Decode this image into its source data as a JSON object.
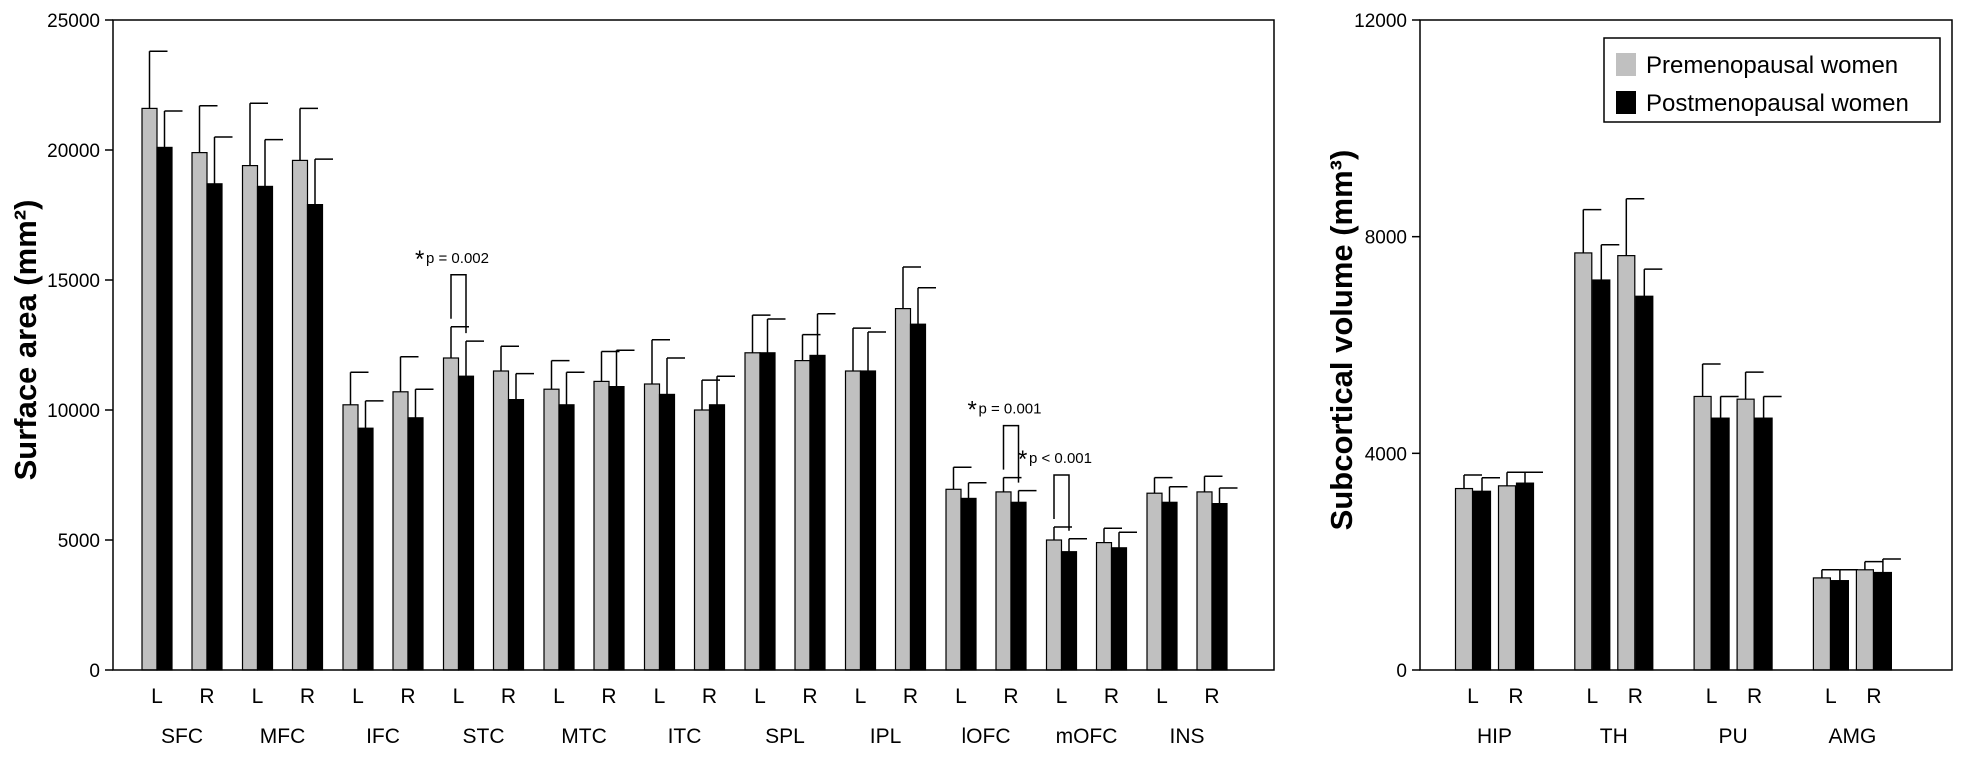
{
  "colors": {
    "premenopausal": "#c0c0c0",
    "postmenopausal": "#000000",
    "axis": "#000000"
  },
  "chart_data": [
    {
      "type": "bar",
      "title": "",
      "ylabel": "Surface area (mm²)",
      "ylim": [
        0,
        25000
      ],
      "yticks": [
        "0",
        "5000",
        "10000",
        "15000",
        "20000",
        "25000"
      ],
      "ytick_values": [
        0,
        5000,
        10000,
        15000,
        20000,
        25000
      ],
      "legend": "none",
      "groups": [
        "SFC",
        "MFC",
        "IFC",
        "STC",
        "MTC",
        "ITC",
        "SPL",
        "IPL",
        "lOFC",
        "mOFC",
        "INS"
      ],
      "sides": [
        "L",
        "R"
      ],
      "categories": [
        "SFC L",
        "SFC R",
        "MFC L",
        "MFC R",
        "IFC L",
        "IFC R",
        "STC L",
        "STC R",
        "MTC L",
        "MTC R",
        "ITC L",
        "ITC R",
        "SPL L",
        "SPL R",
        "IPL L",
        "IPL R",
        "lOFC L",
        "lOFC R",
        "mOFC L",
        "mOFC R",
        "INS L",
        "INS R"
      ],
      "series": [
        {
          "name": "Premenopausal women",
          "values": [
            21600,
            19900,
            19400,
            19600,
            10200,
            10700,
            12000,
            11500,
            10800,
            11100,
            11000,
            10000,
            12200,
            11900,
            11500,
            13900,
            6950,
            6850,
            5000,
            4900,
            6800,
            6850
          ],
          "errors": [
            2200,
            1800,
            2400,
            2000,
            1250,
            1350,
            1200,
            950,
            1100,
            1150,
            1700,
            1150,
            1450,
            1000,
            1650,
            1600,
            850,
            550,
            500,
            550,
            600,
            600
          ]
        },
        {
          "name": "Postmenopausal women",
          "values": [
            20100,
            18700,
            18600,
            17900,
            9300,
            9700,
            11300,
            10400,
            10200,
            10900,
            10600,
            10200,
            12200,
            12100,
            11500,
            13300,
            6600,
            6450,
            4550,
            4700,
            6450,
            6400
          ],
          "errors": [
            1400,
            1800,
            1800,
            1750,
            1050,
            1100,
            1350,
            1000,
            1250,
            1400,
            1400,
            1100,
            1300,
            1600,
            1500,
            1400,
            600,
            450,
            500,
            600,
            600,
            600
          ]
        }
      ],
      "annotations": [
        {
          "star": "*",
          "text": "p = 0.002",
          "category": "STC L"
        },
        {
          "star": "*",
          "text": "p = 0.001",
          "category": "lOFC R"
        },
        {
          "star": "*",
          "text": "p < 0.001",
          "category": "mOFC L"
        }
      ]
    },
    {
      "type": "bar",
      "title": "",
      "ylabel": "Subcortical volume (mm³)",
      "ylim": [
        0,
        12000
      ],
      "yticks": [
        "0",
        "4000",
        "8000",
        "12000"
      ],
      "ytick_values": [
        0,
        4000,
        8000,
        12000
      ],
      "legend": "top-right",
      "groups": [
        "HIP",
        "TH",
        "PU",
        "AMG"
      ],
      "sides": [
        "L",
        "R"
      ],
      "categories": [
        "HIP L",
        "HIP R",
        "TH L",
        "TH R",
        "PU L",
        "PU R",
        "AMG L",
        "AMG R"
      ],
      "series": [
        {
          "name": "Premenopausal women",
          "values": [
            3350,
            3400,
            7700,
            7650,
            5050,
            5000,
            1700,
            1850
          ],
          "errors": [
            250,
            250,
            800,
            1050,
            600,
            500,
            150,
            150
          ]
        },
        {
          "name": "Postmenopausal women",
          "values": [
            3300,
            3450,
            7200,
            6900,
            4650,
            4650,
            1650,
            1800
          ],
          "errors": [
            250,
            200,
            650,
            500,
            400,
            400,
            200,
            250
          ]
        }
      ],
      "annotations": []
    }
  ]
}
